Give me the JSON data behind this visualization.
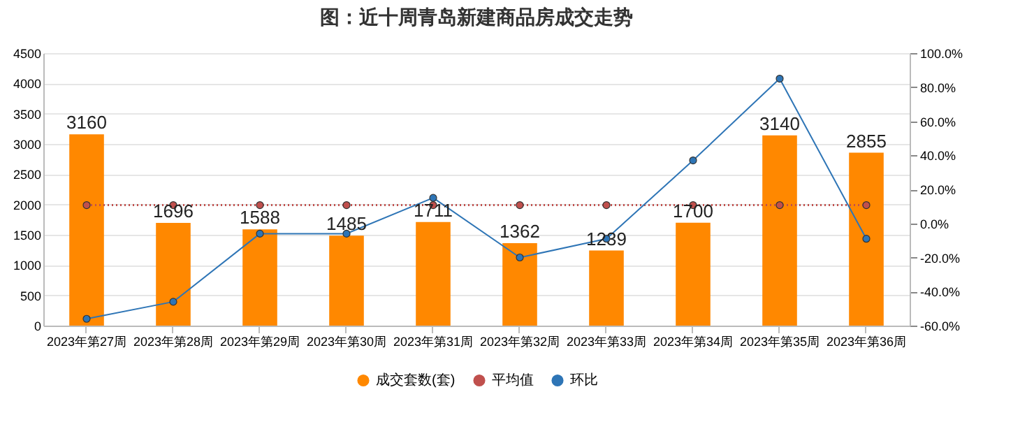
{
  "chart_data": {
    "type": "bar",
    "title": "图：近十周青岛新建商品房成交走势",
    "categories": [
      "2023年第27周",
      "2023年第28周",
      "2023年第29周",
      "2023年第30周",
      "2023年第31周",
      "2023年第32周",
      "2023年第33周",
      "2023年第34周",
      "2023年第35周",
      "2023年第36周"
    ],
    "series": [
      {
        "name": "成交套数(套)",
        "color": "#ff8800",
        "values": [
          3160,
          1696,
          1588,
          1485,
          1711,
          1362,
          1239,
          1700,
          3140,
          2855
        ],
        "value_labels": [
          "3160",
          "1696",
          "1588",
          "1485",
          "1711",
          "1362",
          "1239",
          "1700",
          "3140",
          "2855"
        ]
      },
      {
        "name": "平均值",
        "type": "line",
        "color": "#c0504d",
        "line_style": "dotted",
        "values": [
          1990,
          1990,
          1990,
          1990,
          1990,
          1990,
          1990,
          1990,
          1990,
          1990
        ]
      },
      {
        "name": "环比",
        "type": "line",
        "axis": "y2",
        "color": "#2e75b6",
        "line_style": "solid",
        "values": [
          -56,
          -46,
          -6,
          -6,
          15,
          -20,
          -9,
          37,
          85,
          -9
        ]
      }
    ],
    "ylim": [
      0,
      4500
    ],
    "yticks": [
      0,
      500,
      1000,
      1500,
      2000,
      2500,
      3000,
      3500,
      4000,
      4500
    ],
    "y2lim": [
      -60,
      100
    ],
    "y2ticks": [
      {
        "value": -60,
        "label": "-60.0%"
      },
      {
        "value": -40,
        "label": "-40.0%"
      },
      {
        "value": -20,
        "label": "-20.0%"
      },
      {
        "value": 0,
        "label": "0.0%"
      },
      {
        "value": 20,
        "label": "20.0%"
      },
      {
        "value": 40,
        "label": "40.0%"
      },
      {
        "value": 60,
        "label": "60.0%"
      },
      {
        "value": 80,
        "label": "80.0%"
      },
      {
        "value": 100,
        "label": "100.0%"
      }
    ],
    "grid": "y",
    "legend": "bottom",
    "marker": "circle"
  }
}
